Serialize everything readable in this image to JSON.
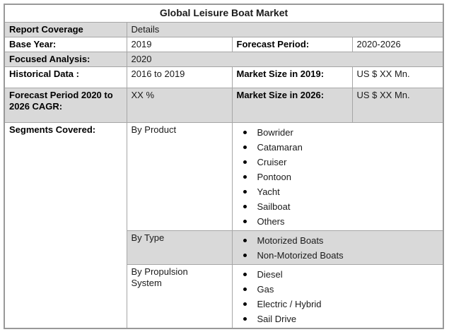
{
  "title": "Global Leisure Boat Market",
  "table": {
    "report_coverage_label": "Report Coverage",
    "report_coverage_value": "Details",
    "base_year_label": "Base Year:",
    "base_year_value": "2019",
    "forecast_period_label": "Forecast Period:",
    "forecast_period_value": "2020-2026",
    "focused_analysis_label": "Focused Analysis:",
    "focused_analysis_value": "2020",
    "historical_data_label": "Historical Data :",
    "historical_data_value": "2016 to 2019",
    "market_size_2019_label": "Market Size in 2019:",
    "market_size_2019_value": "US $ XX Mn.",
    "cagr_label": "Forecast Period 2020 to 2026 CAGR:",
    "cagr_value": "XX %",
    "market_size_2026_label": "Market Size in 2026:",
    "market_size_2026_value": "US $ XX Mn.",
    "segments_label": "Segments Covered:"
  },
  "segments": [
    {
      "group": "By Product",
      "items": [
        "Bowrider",
        "Catamaran",
        "Cruiser",
        "Pontoon",
        "Yacht",
        "Sailboat",
        "Others"
      ]
    },
    {
      "group": "By Type",
      "items": [
        "Motorized Boats",
        "Non-Motorized Boats"
      ]
    },
    {
      "group": "By Propulsion System",
      "items": [
        "Diesel",
        "Gas",
        "Electric / Hybrid",
        "Sail Drive"
      ]
    }
  ],
  "colors": {
    "row_stripe": "#d9d9d9",
    "grid_border": "#a6a6a6",
    "outer_border": "#999999",
    "text": "#1a1a1a",
    "bullet": "#000000"
  }
}
